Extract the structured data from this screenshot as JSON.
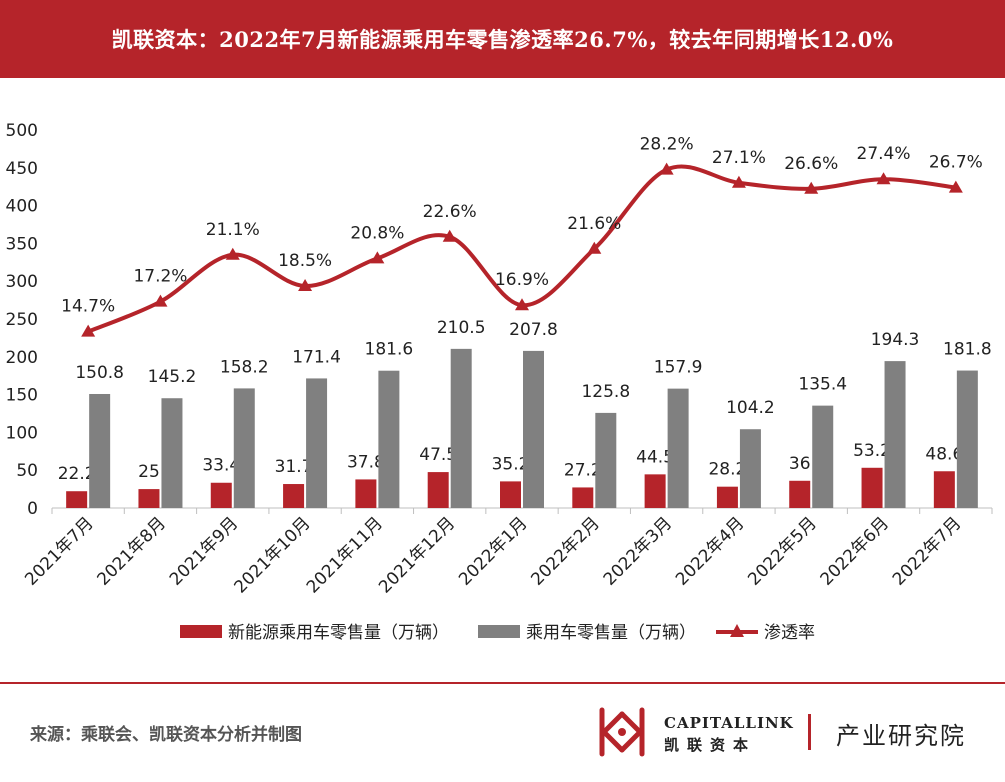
{
  "header": {
    "title": "凯联资本：2022年7月新能源乘用车零售渗透率26.7%，较去年同期增长12.0%"
  },
  "chart_data": {
    "type": "bar",
    "categories": [
      "2021年7月",
      "2021年8月",
      "2021年9月",
      "2021年10月",
      "2021年11月",
      "2021年12月",
      "2022年1月",
      "2022年2月",
      "2022年3月",
      "2022年4月",
      "2022年5月",
      "2022年6月",
      "2022年7月"
    ],
    "series": [
      {
        "name": "新能源乘用车零售量（万辆）",
        "type": "bar",
        "color": "#b5242a",
        "values": [
          22.2,
          25,
          33.4,
          31.7,
          37.8,
          47.5,
          35.2,
          27.2,
          44.5,
          28.2,
          36,
          53.2,
          48.6
        ]
      },
      {
        "name": "乘用车零售量（万辆）",
        "type": "bar",
        "color": "#808080",
        "values": [
          150.8,
          145.2,
          158.2,
          171.4,
          181.6,
          210.5,
          207.8,
          125.8,
          157.9,
          104.2,
          135.4,
          194.3,
          181.8
        ]
      },
      {
        "name": "渗透率",
        "type": "line",
        "color": "#b5242a",
        "marker": "triangle",
        "values": [
          14.7,
          17.2,
          21.1,
          18.5,
          20.8,
          22.6,
          16.9,
          21.6,
          28.2,
          27.1,
          26.6,
          27.4,
          26.7
        ],
        "labels": [
          "14.7%",
          "17.2%",
          "21.1%",
          "18.5%",
          "20.8%",
          "22.6%",
          "16.9%",
          "21.6%",
          "28.2%",
          "27.1%",
          "26.6%",
          "27.4%",
          "26.7%"
        ]
      }
    ],
    "yticks": [
      "0",
      "50",
      "100",
      "150",
      "200",
      "250",
      "300",
      "350",
      "400",
      "450",
      "500"
    ],
    "ylim": [
      0,
      500
    ],
    "line_ylim": [
      0,
      31.5
    ],
    "grid": false,
    "legend_position": "bottom"
  },
  "footer": {
    "source": "来源：乘联会、凯联资本分析并制图",
    "brand_en": "CAPITALLINK",
    "brand_cn": "凯联资本",
    "tagline": "产业研究院"
  }
}
